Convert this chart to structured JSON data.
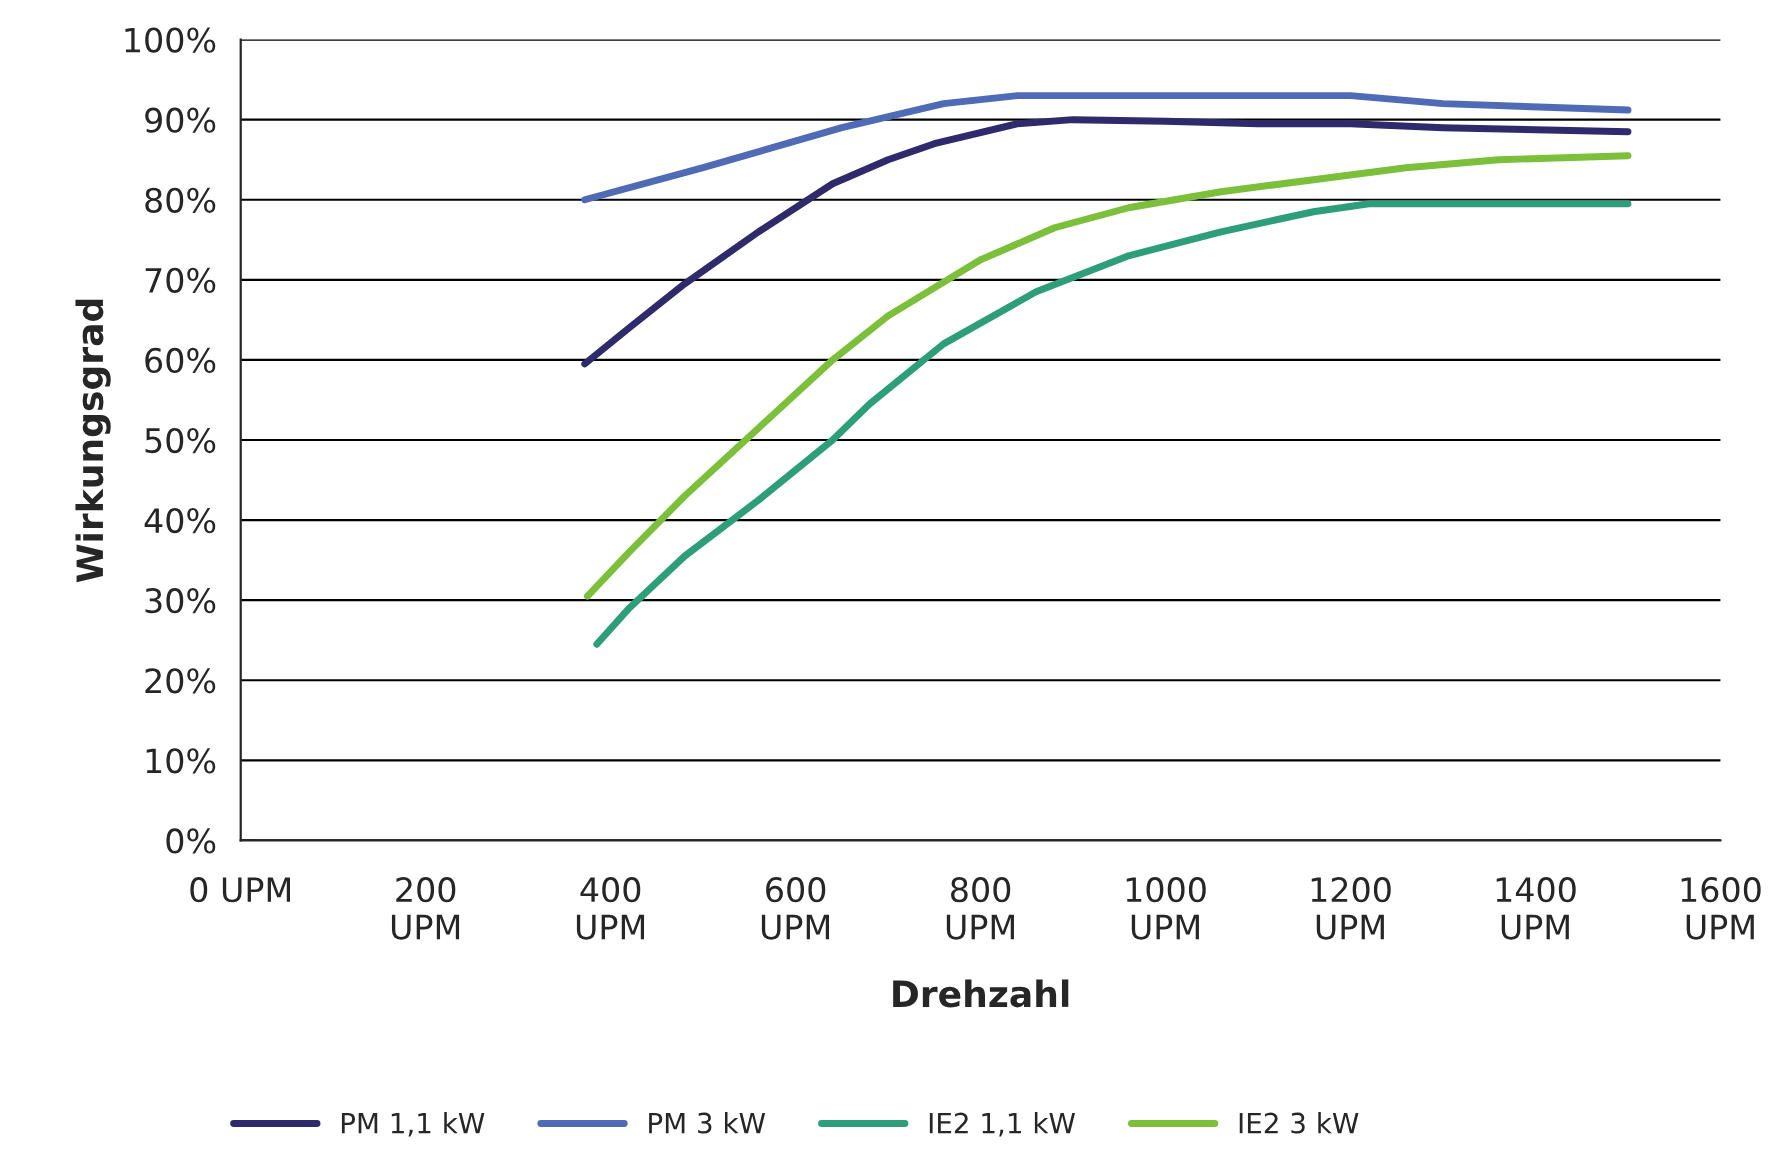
{
  "chart_data": {
    "type": "line",
    "xlabel": "Drehzahl",
    "ylabel": "Wirkungsgrad",
    "xlim": [
      0,
      1600
    ],
    "ylim": [
      0,
      100
    ],
    "xticks": [
      {
        "value": 0,
        "label": "0 UPM"
      },
      {
        "value": 200,
        "label": "200\nUPM"
      },
      {
        "value": 400,
        "label": "400\nUPM"
      },
      {
        "value": 600,
        "label": "600\nUPM"
      },
      {
        "value": 800,
        "label": "800\nUPM"
      },
      {
        "value": 1000,
        "label": "1000\nUPM"
      },
      {
        "value": 1200,
        "label": "1200\nUPM"
      },
      {
        "value": 1400,
        "label": "1400\nUPM"
      },
      {
        "value": 1600,
        "label": "1600\nUPM"
      }
    ],
    "yticks": [
      {
        "value": 0,
        "label": "0%"
      },
      {
        "value": 10,
        "label": "10%"
      },
      {
        "value": 20,
        "label": "20%"
      },
      {
        "value": 30,
        "label": "30%"
      },
      {
        "value": 40,
        "label": "40%"
      },
      {
        "value": 50,
        "label": "50%"
      },
      {
        "value": 60,
        "label": "60%"
      },
      {
        "value": 70,
        "label": "70%"
      },
      {
        "value": 80,
        "label": "80%"
      },
      {
        "value": 90,
        "label": "90%"
      },
      {
        "value": 100,
        "label": "100%"
      }
    ],
    "grid": "y",
    "legend": "bottom",
    "marker": "none",
    "line_style": "solid",
    "series": [
      {
        "name": "PM 1,1 kW",
        "color": "#2e2a6b",
        "x": [
          372,
          420,
          480,
          560,
          640,
          700,
          750,
          840,
          900,
          1000,
          1100,
          1200,
          1300,
          1500
        ],
        "values": [
          59.5,
          64,
          69.5,
          76,
          82,
          85,
          87,
          89.5,
          90,
          89.8,
          89.5,
          89.5,
          89,
          88.5
        ]
      },
      {
        "name": "PM 3 kW",
        "color": "#4f6bb5",
        "x": [
          372,
          500,
          650,
          760,
          840,
          1000,
          1200,
          1300,
          1500
        ],
        "values": [
          80,
          84,
          89,
          92,
          93,
          93,
          93,
          92,
          91.2
        ]
      },
      {
        "name": "IE2 1,1 kW",
        "color": "#2e9e7a",
        "x": [
          385,
          420,
          480,
          560,
          640,
          680,
          760,
          860,
          960,
          1060,
          1160,
          1220,
          1500
        ],
        "values": [
          24.5,
          29,
          35.5,
          42.5,
          50,
          54.5,
          62,
          68.5,
          73,
          76,
          78.5,
          79.5,
          79.5
        ]
      },
      {
        "name": "IE2 3 kW",
        "color": "#7bbf3a",
        "x": [
          375,
          420,
          480,
          560,
          640,
          700,
          800,
          880,
          960,
          1060,
          1160,
          1260,
          1360,
          1500
        ],
        "values": [
          30.5,
          36,
          43,
          51.5,
          60,
          65.5,
          72.5,
          76.5,
          79,
          81,
          82.5,
          84,
          85,
          85.5
        ]
      }
    ]
  }
}
